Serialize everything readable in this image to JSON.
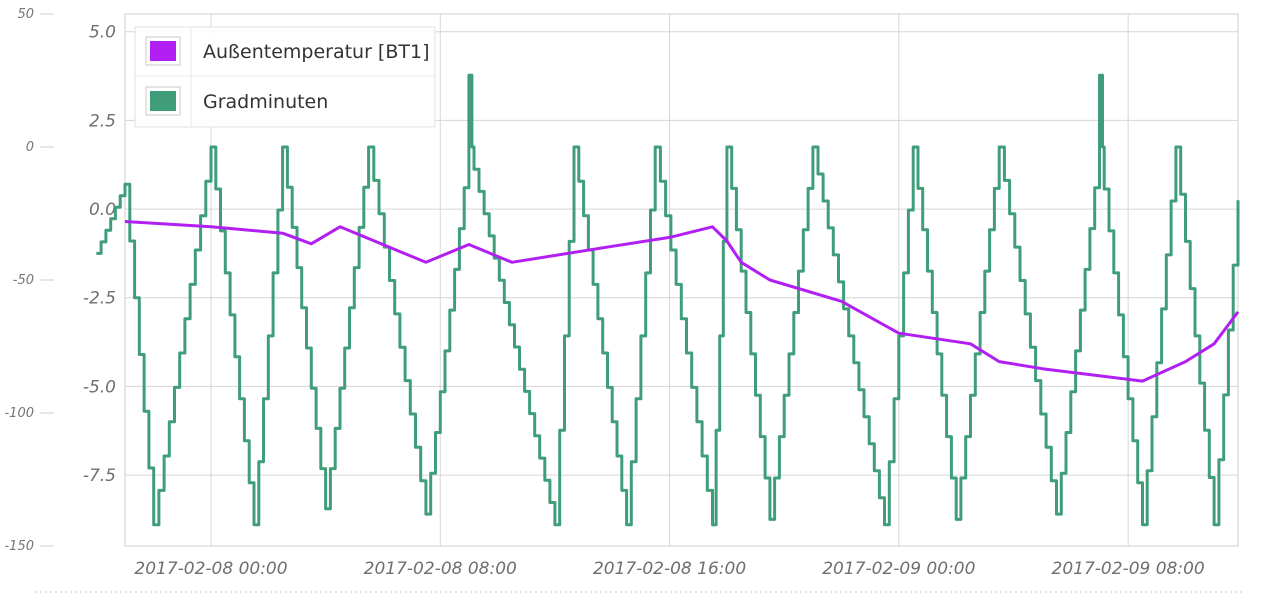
{
  "chart_data": {
    "type": "line",
    "x_axis": {
      "type": "datetime",
      "range": [
        "2017-02-07 21:00",
        "2017-02-09 11:50"
      ],
      "tick_labels": [
        "2017-02-08 00:00",
        "2017-02-08 08:00",
        "2017-02-08 16:00",
        "2017-02-09 00:00",
        "2017-02-09 08:00"
      ]
    },
    "y_axis_right_series": {
      "range": [
        -150,
        50
      ],
      "tick_labels": [
        "50",
        "0",
        "-50",
        "-100",
        "-150"
      ]
    },
    "y_axis_main": {
      "range": [
        -9.5,
        5.5
      ],
      "tick_labels": [
        "5.0",
        "2.5",
        "0.0",
        "-2.5",
        "-5.0",
        "-7.5"
      ]
    },
    "grid": true,
    "legend_position": "top-left",
    "series": [
      {
        "name": "Außentemperatur [BT1]",
        "color": "#b11ff2",
        "axis": "main",
        "points": [
          [
            "2017-02-07 21:00",
            -0.35
          ],
          [
            "2017-02-08 00:00",
            -0.5
          ],
          [
            "2017-02-08 02:30",
            -0.68
          ],
          [
            "2017-02-08 03:30",
            -0.98
          ],
          [
            "2017-02-08 04:30",
            -0.5
          ],
          [
            "2017-02-08 07:30",
            -1.5
          ],
          [
            "2017-02-08 09:00",
            -1.0
          ],
          [
            "2017-02-08 10:30",
            -1.5
          ],
          [
            "2017-02-08 14:00",
            -1.05
          ],
          [
            "2017-02-08 16:00",
            -0.8
          ],
          [
            "2017-02-08 17:30",
            -0.5
          ],
          [
            "2017-02-08 18:00",
            -0.9
          ],
          [
            "2017-02-08 18:30",
            -1.5
          ],
          [
            "2017-02-08 19:30",
            -2.0
          ],
          [
            "2017-02-08 22:00",
            -2.6
          ],
          [
            "2017-02-09 00:00",
            -3.5
          ],
          [
            "2017-02-09 02:30",
            -3.8
          ],
          [
            "2017-02-09 03:30",
            -4.3
          ],
          [
            "2017-02-09 05:00",
            -4.5
          ],
          [
            "2017-02-09 08:30",
            -4.85
          ],
          [
            "2017-02-09 10:00",
            -4.3
          ],
          [
            "2017-02-09 11:00",
            -3.8
          ],
          [
            "2017-02-09 11:50",
            -2.9
          ]
        ]
      },
      {
        "name": "Gradminuten",
        "color": "#3f9e79",
        "axis": "right",
        "cycles": [
          {
            "start": "2017-02-07 20:00",
            "peak": "2017-02-07 21:00",
            "peak_value": -14,
            "trough": "2017-02-07 22:00",
            "trough_value": -142
          },
          {
            "start": "2017-02-07 22:00",
            "peak": "2017-02-08 00:00",
            "peak_value": 0,
            "trough": "2017-02-08 01:30",
            "trough_value": -142
          },
          {
            "start": "2017-02-08 01:30",
            "peak": "2017-02-08 02:30",
            "peak_value": 0,
            "trough": "2017-02-08 04:00",
            "trough_value": -136
          },
          {
            "start": "2017-02-08 04:00",
            "peak": "2017-02-08 05:30",
            "peak_value": 0,
            "trough": "2017-02-08 07:30",
            "trough_value": -138
          },
          {
            "start": "2017-02-08 07:30",
            "peak": "2017-02-08 09:00",
            "peak_value": 0,
            "peak_top": 27,
            "trough": "2017-02-08 12:00",
            "trough_value": -142
          },
          {
            "start": "2017-02-08 12:00",
            "peak": "2017-02-08 12:40",
            "peak_value": 0,
            "trough": "2017-02-08 14:30",
            "trough_value": -142
          },
          {
            "start": "2017-02-08 14:30",
            "peak": "2017-02-08 15:30",
            "peak_value": 0,
            "trough": "2017-02-08 17:30",
            "trough_value": -142
          },
          {
            "start": "2017-02-08 17:30",
            "peak": "2017-02-08 18:00",
            "peak_value": 0,
            "trough": "2017-02-08 19:30",
            "trough_value": -140
          },
          {
            "start": "2017-02-08 19:30",
            "peak": "2017-02-08 21:00",
            "peak_value": 0,
            "trough": "2017-02-08 23:30",
            "trough_value": -142
          },
          {
            "start": "2017-02-08 23:30",
            "peak": "2017-02-09 00:30",
            "peak_value": 0,
            "trough": "2017-02-09 02:00",
            "trough_value": -140
          },
          {
            "start": "2017-02-09 02:00",
            "peak": "2017-02-09 03:30",
            "peak_value": 0,
            "trough": "2017-02-09 05:30",
            "trough_value": -138
          },
          {
            "start": "2017-02-09 05:30",
            "peak": "2017-02-09 07:00",
            "peak_value": 0,
            "peak_top": 27,
            "trough": "2017-02-09 08:30",
            "trough_value": -142
          },
          {
            "start": "2017-02-09 08:30",
            "peak": "2017-02-09 09:40",
            "peak_value": 0,
            "trough": "2017-02-09 11:00",
            "trough_value": -142
          },
          {
            "start": "2017-02-09 11:00",
            "peak": "2017-02-09 11:50",
            "peak_value": -20
          }
        ]
      }
    ]
  },
  "legend": {
    "items": [
      {
        "label": "Außentemperatur [BT1]",
        "color": "#b11ff2"
      },
      {
        "label": "Gradminuten",
        "color": "#3f9e79"
      }
    ]
  }
}
